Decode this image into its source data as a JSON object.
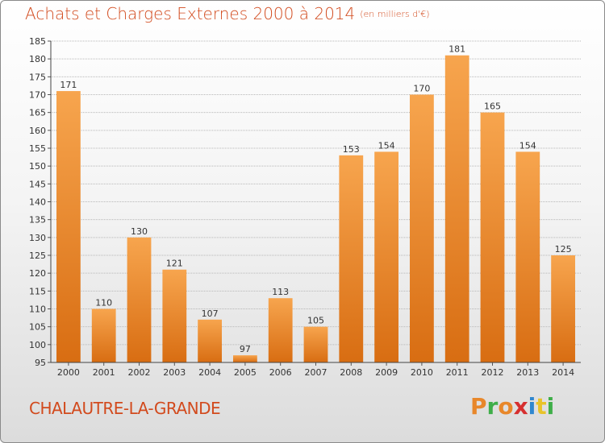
{
  "header": {
    "title": "Achats et Charges Externes 2000 à 2014",
    "unit": "(en milliers d'€)"
  },
  "footer": {
    "commune": "CHALAUTRE-LA-GRANDE",
    "logo_text": "Proxiti",
    "logo_colors": [
      "#e8872a",
      "#3fae49",
      "#e8872a",
      "#d62f2f",
      "#2f87cf",
      "#e8c32a",
      "#3fae49"
    ]
  },
  "colors": {
    "bar_light": "#f7a54e",
    "bar_dark": "#d86d12",
    "title": "#d24a1d",
    "grid": "#b8b8b8"
  },
  "chart_data": {
    "type": "bar",
    "title": "Achats et Charges Externes 2000 à 2014",
    "categories": [
      "2000",
      "2001",
      "2002",
      "2003",
      "2004",
      "2005",
      "2006",
      "2007",
      "2008",
      "2009",
      "2010",
      "2011",
      "2012",
      "2013",
      "2014"
    ],
    "values": [
      171,
      110,
      130,
      121,
      107,
      97,
      113,
      105,
      153,
      154,
      170,
      181,
      165,
      154,
      125
    ],
    "ylim": [
      95,
      185
    ],
    "yticks": [
      95,
      100,
      105,
      110,
      115,
      120,
      125,
      130,
      135,
      140,
      145,
      150,
      155,
      160,
      165,
      170,
      175,
      180,
      185
    ],
    "grid": true,
    "data_labels": true
  }
}
